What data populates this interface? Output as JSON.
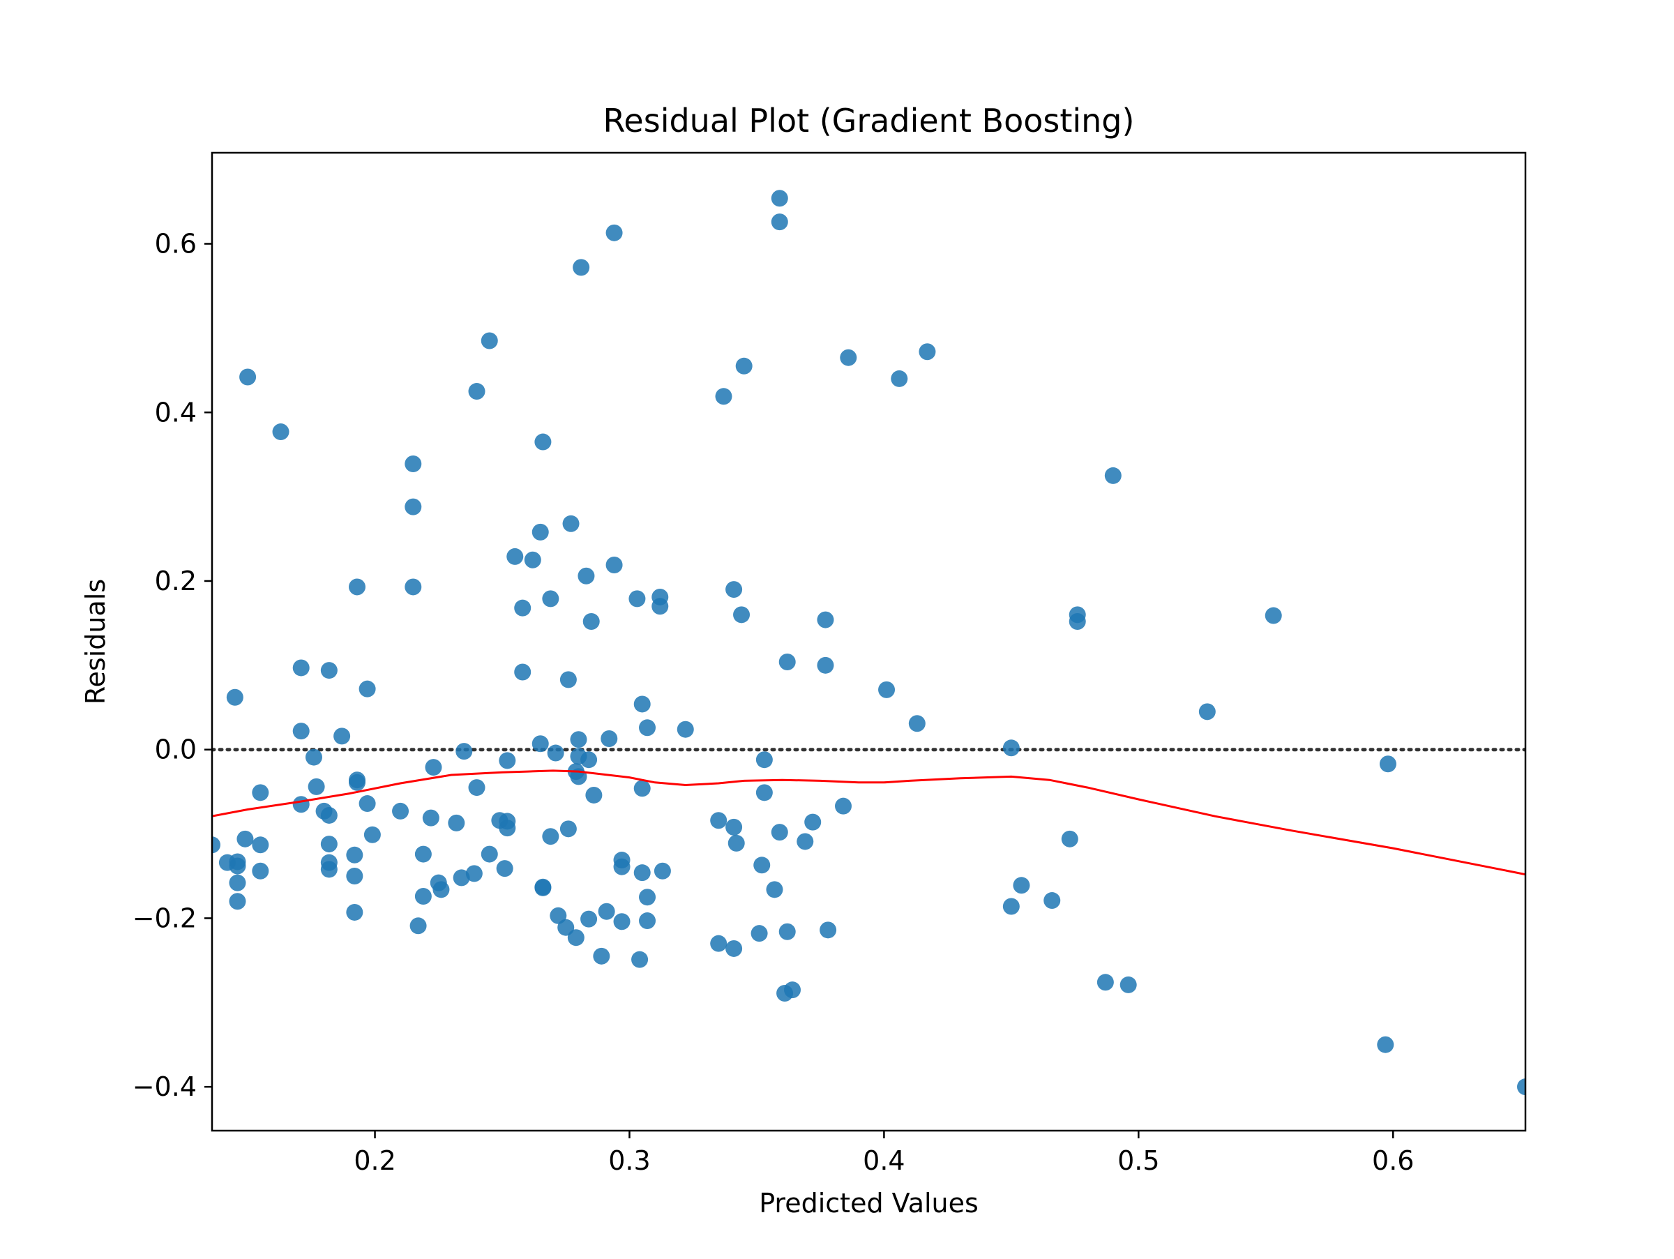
{
  "chart_data": {
    "type": "scatter",
    "title": "Residual Plot (Gradient Boosting)",
    "xlabel": "Predicted Values",
    "ylabel": "Residuals",
    "xlim": [
      0.136,
      0.652
    ],
    "ylim": [
      -0.452,
      0.708
    ],
    "xticks": [
      0.2,
      0.3,
      0.4,
      0.5,
      0.6
    ],
    "yticks": [
      -0.4,
      -0.2,
      0.0,
      0.2,
      0.4,
      0.6
    ],
    "xtick_labels": [
      "0.2",
      "0.3",
      "0.4",
      "0.5",
      "0.6"
    ],
    "ytick_labels": [
      "−0.4",
      "−0.2",
      "0.0",
      "0.2",
      "0.4",
      "0.6"
    ],
    "grid": false,
    "reference_line": {
      "y": 0.0,
      "style": "dotted",
      "color": "#333333"
    },
    "colors": {
      "points": "#1f77b4",
      "trend": "#ff0000"
    },
    "series": [
      {
        "type": "scatter",
        "points": [
          [
            0.136,
            -0.113
          ],
          [
            0.142,
            -0.134
          ],
          [
            0.145,
            0.062
          ],
          [
            0.146,
            -0.138
          ],
          [
            0.146,
            -0.133
          ],
          [
            0.146,
            -0.158
          ],
          [
            0.146,
            -0.18
          ],
          [
            0.149,
            -0.106
          ],
          [
            0.15,
            0.442
          ],
          [
            0.155,
            -0.051
          ],
          [
            0.155,
            -0.113
          ],
          [
            0.155,
            -0.144
          ],
          [
            0.163,
            0.377
          ],
          [
            0.171,
            0.097
          ],
          [
            0.171,
            0.022
          ],
          [
            0.171,
            -0.065
          ],
          [
            0.176,
            -0.009
          ],
          [
            0.177,
            -0.044
          ],
          [
            0.18,
            -0.073
          ],
          [
            0.182,
            0.094
          ],
          [
            0.182,
            -0.078
          ],
          [
            0.182,
            -0.112
          ],
          [
            0.182,
            -0.134
          ],
          [
            0.182,
            -0.142
          ],
          [
            0.187,
            0.016
          ],
          [
            0.192,
            -0.125
          ],
          [
            0.192,
            -0.15
          ],
          [
            0.192,
            -0.193
          ],
          [
            0.193,
            0.193
          ],
          [
            0.193,
            -0.036
          ],
          [
            0.193,
            -0.039
          ],
          [
            0.197,
            0.072
          ],
          [
            0.197,
            -0.064
          ],
          [
            0.199,
            -0.101
          ],
          [
            0.21,
            -0.073
          ],
          [
            0.215,
            0.339
          ],
          [
            0.215,
            0.288
          ],
          [
            0.215,
            0.193
          ],
          [
            0.217,
            -0.209
          ],
          [
            0.219,
            -0.124
          ],
          [
            0.219,
            -0.174
          ],
          [
            0.222,
            -0.081
          ],
          [
            0.223,
            -0.021
          ],
          [
            0.225,
            -0.158
          ],
          [
            0.226,
            -0.166
          ],
          [
            0.232,
            -0.087
          ],
          [
            0.234,
            -0.152
          ],
          [
            0.235,
            -0.002
          ],
          [
            0.239,
            -0.147
          ],
          [
            0.24,
            0.425
          ],
          [
            0.24,
            -0.045
          ],
          [
            0.245,
            0.485
          ],
          [
            0.245,
            -0.124
          ],
          [
            0.249,
            -0.084
          ],
          [
            0.251,
            -0.141
          ],
          [
            0.252,
            -0.013
          ],
          [
            0.252,
            -0.085
          ],
          [
            0.252,
            -0.093
          ],
          [
            0.255,
            0.229
          ],
          [
            0.258,
            0.092
          ],
          [
            0.258,
            0.168
          ],
          [
            0.262,
            0.225
          ],
          [
            0.265,
            0.258
          ],
          [
            0.265,
            0.007
          ],
          [
            0.266,
            0.365
          ],
          [
            0.266,
            -0.163
          ],
          [
            0.266,
            -0.164
          ],
          [
            0.269,
            0.179
          ],
          [
            0.269,
            -0.103
          ],
          [
            0.271,
            -0.004
          ],
          [
            0.272,
            -0.197
          ],
          [
            0.275,
            -0.211
          ],
          [
            0.276,
            -0.094
          ],
          [
            0.276,
            0.083
          ],
          [
            0.277,
            0.268
          ],
          [
            0.279,
            -0.223
          ],
          [
            0.279,
            -0.026
          ],
          [
            0.28,
            0.012
          ],
          [
            0.28,
            -0.008
          ],
          [
            0.28,
            -0.032
          ],
          [
            0.281,
            0.572
          ],
          [
            0.283,
            0.206
          ],
          [
            0.284,
            -0.012
          ],
          [
            0.284,
            -0.201
          ],
          [
            0.285,
            0.152
          ],
          [
            0.286,
            -0.054
          ],
          [
            0.289,
            -0.245
          ],
          [
            0.291,
            -0.192
          ],
          [
            0.292,
            0.013
          ],
          [
            0.294,
            0.613
          ],
          [
            0.294,
            0.219
          ],
          [
            0.297,
            -0.131
          ],
          [
            0.297,
            -0.139
          ],
          [
            0.297,
            -0.204
          ],
          [
            0.303,
            0.179
          ],
          [
            0.304,
            -0.249
          ],
          [
            0.305,
            0.054
          ],
          [
            0.305,
            -0.046
          ],
          [
            0.305,
            -0.146
          ],
          [
            0.307,
            0.026
          ],
          [
            0.307,
            -0.175
          ],
          [
            0.307,
            -0.203
          ],
          [
            0.312,
            0.181
          ],
          [
            0.312,
            0.17
          ],
          [
            0.313,
            -0.144
          ],
          [
            0.322,
            0.024
          ],
          [
            0.335,
            -0.084
          ],
          [
            0.335,
            -0.23
          ],
          [
            0.337,
            0.419
          ],
          [
            0.341,
            0.19
          ],
          [
            0.341,
            -0.092
          ],
          [
            0.341,
            -0.236
          ],
          [
            0.342,
            -0.111
          ],
          [
            0.344,
            0.16
          ],
          [
            0.345,
            0.455
          ],
          [
            0.351,
            -0.218
          ],
          [
            0.352,
            -0.137
          ],
          [
            0.353,
            -0.012
          ],
          [
            0.353,
            -0.051
          ],
          [
            0.357,
            -0.166
          ],
          [
            0.359,
            0.654
          ],
          [
            0.359,
            0.626
          ],
          [
            0.359,
            -0.098
          ],
          [
            0.361,
            -0.289
          ],
          [
            0.362,
            0.104
          ],
          [
            0.362,
            -0.216
          ],
          [
            0.364,
            -0.285
          ],
          [
            0.369,
            -0.109
          ],
          [
            0.372,
            -0.086
          ],
          [
            0.377,
            0.154
          ],
          [
            0.377,
            0.1
          ],
          [
            0.378,
            -0.214
          ],
          [
            0.384,
            -0.067
          ],
          [
            0.386,
            0.465
          ],
          [
            0.401,
            0.071
          ],
          [
            0.406,
            0.44
          ],
          [
            0.413,
            0.031
          ],
          [
            0.417,
            0.472
          ],
          [
            0.45,
            0.002
          ],
          [
            0.45,
            -0.186
          ],
          [
            0.454,
            -0.161
          ],
          [
            0.466,
            -0.179
          ],
          [
            0.473,
            -0.106
          ],
          [
            0.476,
            0.16
          ],
          [
            0.476,
            0.152
          ],
          [
            0.487,
            -0.276
          ],
          [
            0.49,
            0.325
          ],
          [
            0.496,
            -0.279
          ],
          [
            0.527,
            0.045
          ],
          [
            0.553,
            0.159
          ],
          [
            0.597,
            -0.35
          ],
          [
            0.598,
            -0.017
          ],
          [
            0.652,
            -0.4
          ]
        ]
      },
      {
        "type": "line",
        "points": [
          [
            0.136,
            -0.079
          ],
          [
            0.15,
            -0.071
          ],
          [
            0.17,
            -0.062
          ],
          [
            0.19,
            -0.052
          ],
          [
            0.21,
            -0.04
          ],
          [
            0.23,
            -0.03
          ],
          [
            0.25,
            -0.027
          ],
          [
            0.26,
            -0.026
          ],
          [
            0.27,
            -0.025
          ],
          [
            0.28,
            -0.026
          ],
          [
            0.3,
            -0.033
          ],
          [
            0.31,
            -0.039
          ],
          [
            0.322,
            -0.042
          ],
          [
            0.335,
            -0.04
          ],
          [
            0.345,
            -0.037
          ],
          [
            0.36,
            -0.036
          ],
          [
            0.375,
            -0.037
          ],
          [
            0.39,
            -0.039
          ],
          [
            0.4,
            -0.039
          ],
          [
            0.41,
            -0.037
          ],
          [
            0.43,
            -0.034
          ],
          [
            0.45,
            -0.032
          ],
          [
            0.465,
            -0.036
          ],
          [
            0.48,
            -0.045
          ],
          [
            0.5,
            -0.059
          ],
          [
            0.53,
            -0.079
          ],
          [
            0.56,
            -0.096
          ],
          [
            0.6,
            -0.117
          ],
          [
            0.652,
            -0.148
          ]
        ]
      }
    ]
  }
}
